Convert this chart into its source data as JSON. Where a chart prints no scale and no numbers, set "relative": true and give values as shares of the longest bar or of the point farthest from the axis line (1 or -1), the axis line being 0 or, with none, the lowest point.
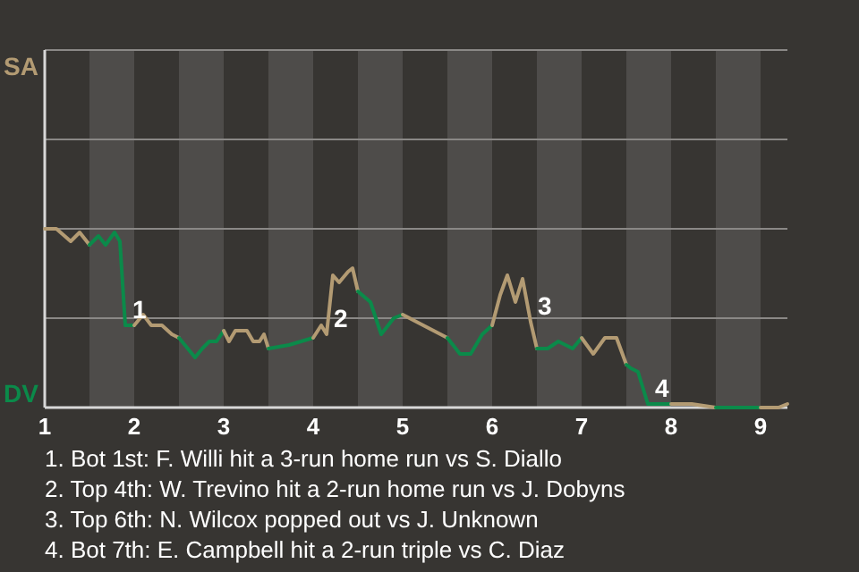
{
  "chart_data": {
    "type": "line",
    "relative": true,
    "xlim": [
      1,
      9.3
    ],
    "xticks": [
      1,
      2,
      3,
      4,
      5,
      6,
      7,
      8,
      9
    ],
    "marker": "none",
    "ref_lines": [
      {
        "axis": "y",
        "value": 0.5,
        "color": "#8a8886"
      },
      {
        "axis": "y",
        "value": 1,
        "color": "#8a8886"
      },
      {
        "axis": "y",
        "value": 1.5,
        "color": "#8a8886"
      }
    ],
    "bands": [
      {
        "axis": "x",
        "from": 1.5,
        "to": 2,
        "color": "#4e4c4a"
      },
      {
        "axis": "x",
        "from": 2.5,
        "to": 3,
        "color": "#4e4c4a"
      },
      {
        "axis": "x",
        "from": 3.5,
        "to": 4,
        "color": "#4e4c4a"
      },
      {
        "axis": "x",
        "from": 4.5,
        "to": 5,
        "color": "#4e4c4a"
      },
      {
        "axis": "x",
        "from": 5.5,
        "to": 6,
        "color": "#4e4c4a"
      },
      {
        "axis": "x",
        "from": 6.5,
        "to": 7,
        "color": "#4e4c4a"
      },
      {
        "axis": "x",
        "from": 7.5,
        "to": 8,
        "color": "#4e4c4a"
      },
      {
        "axis": "x",
        "from": 8.5,
        "to": 9,
        "color": "#4e4c4a"
      }
    ],
    "series": [
      {
        "color": "#b39b73",
        "x": [
          1,
          1.13,
          1.29,
          1.39,
          1.5
        ],
        "values": [
          1,
          1,
          0.93,
          0.98,
          0.91
        ]
      },
      {
        "color": "#0b8a4a",
        "x": [
          1.5,
          1.6,
          1.68,
          1.78,
          1.84,
          1.9,
          2
        ],
        "values": [
          0.91,
          0.96,
          0.91,
          0.98,
          0.93,
          0.46,
          0.46
        ]
      },
      {
        "color": "#b39b73",
        "x": [
          2,
          2.1,
          2.19,
          2.31,
          2.42,
          2.5
        ],
        "values": [
          0.46,
          0.52,
          0.46,
          0.46,
          0.41,
          0.39
        ]
      },
      {
        "color": "#0b8a4a",
        "x": [
          2.5,
          2.68,
          2.76,
          2.84,
          2.92,
          3
        ],
        "values": [
          0.39,
          0.28,
          0.33,
          0.37,
          0.37,
          0.43
        ]
      },
      {
        "color": "#b39b73",
        "x": [
          3,
          3.06,
          3.13,
          3.26,
          3.33,
          3.4,
          3.45,
          3.5
        ],
        "values": [
          0.43,
          0.37,
          0.43,
          0.43,
          0.37,
          0.37,
          0.41,
          0.33
        ]
      },
      {
        "color": "#0b8a4a",
        "x": [
          3.5,
          3.73,
          4
        ],
        "values": [
          0.33,
          0.35,
          0.39
        ]
      },
      {
        "color": "#b39b73",
        "x": [
          4,
          4.09,
          4.15,
          4.22,
          4.29,
          4.39,
          4.44,
          4.5
        ],
        "values": [
          0.39,
          0.46,
          0.41,
          0.74,
          0.7,
          0.76,
          0.78,
          0.65
        ]
      },
      {
        "color": "#0b8a4a",
        "x": [
          4.5,
          4.64,
          4.76,
          4.9,
          5
        ],
        "values": [
          0.65,
          0.59,
          0.41,
          0.5,
          0.52
        ]
      },
      {
        "color": "#b39b73",
        "x": [
          5,
          5.23,
          5.5
        ],
        "values": [
          0.52,
          0.46,
          0.39
        ]
      },
      {
        "color": "#0b8a4a",
        "x": [
          5.5,
          5.64,
          5.76,
          5.89,
          6
        ],
        "values": [
          0.39,
          0.3,
          0.3,
          0.41,
          0.46
        ]
      },
      {
        "color": "#b39b73",
        "x": [
          6,
          6.09,
          6.17,
          6.26,
          6.34,
          6.43,
          6.5
        ],
        "values": [
          0.46,
          0.63,
          0.74,
          0.59,
          0.72,
          0.48,
          0.33
        ]
      },
      {
        "color": "#0b8a4a",
        "x": [
          6.5,
          6.62,
          6.74,
          6.9,
          7
        ],
        "values": [
          0.33,
          0.33,
          0.37,
          0.33,
          0.39
        ]
      },
      {
        "color": "#b39b73",
        "x": [
          7,
          7.13,
          7.26,
          7.39,
          7.5
        ],
        "values": [
          0.39,
          0.3,
          0.39,
          0.39,
          0.24
        ]
      },
      {
        "color": "#0b8a4a",
        "x": [
          7.5,
          7.55,
          7.63,
          7.74,
          7.86,
          8
        ],
        "values": [
          0.24,
          0.22,
          0.2,
          0.02,
          0.02,
          0.02
        ]
      },
      {
        "color": "#b39b73",
        "x": [
          8,
          8.23,
          8.5
        ],
        "values": [
          0.02,
          0.02,
          0
        ]
      },
      {
        "color": "#0b8a4a",
        "x": [
          8.5,
          8.64,
          9
        ],
        "values": [
          0,
          0,
          0
        ]
      },
      {
        "color": "#b39b73",
        "x": [
          9,
          9.1,
          9.2,
          9.3
        ],
        "values": [
          0,
          0,
          0,
          0.02
        ]
      }
    ],
    "annotations": [
      "SA",
      "DV",
      {
        "text": "1",
        "x": 1.9,
        "y": 0.46
      },
      {
        "text": "2",
        "x": 4.15,
        "y": 0.41
      },
      {
        "text": "3",
        "x": 6.43,
        "y": 0.48
      },
      {
        "text": "4",
        "x": 7.74,
        "y": 0.02
      },
      "1. Bot 1st: F. Willi hit a 3-run home run vs S. Diallo",
      "2. Top 4th: W. Trevino hit a 2-run home run vs J. Dobyns",
      "3. Top 6th: N. Wilcox popped out vs J. Unknown",
      "4. Bot 7th: E. Campbell hit a 2-run triple vs C. Diaz"
    ]
  }
}
